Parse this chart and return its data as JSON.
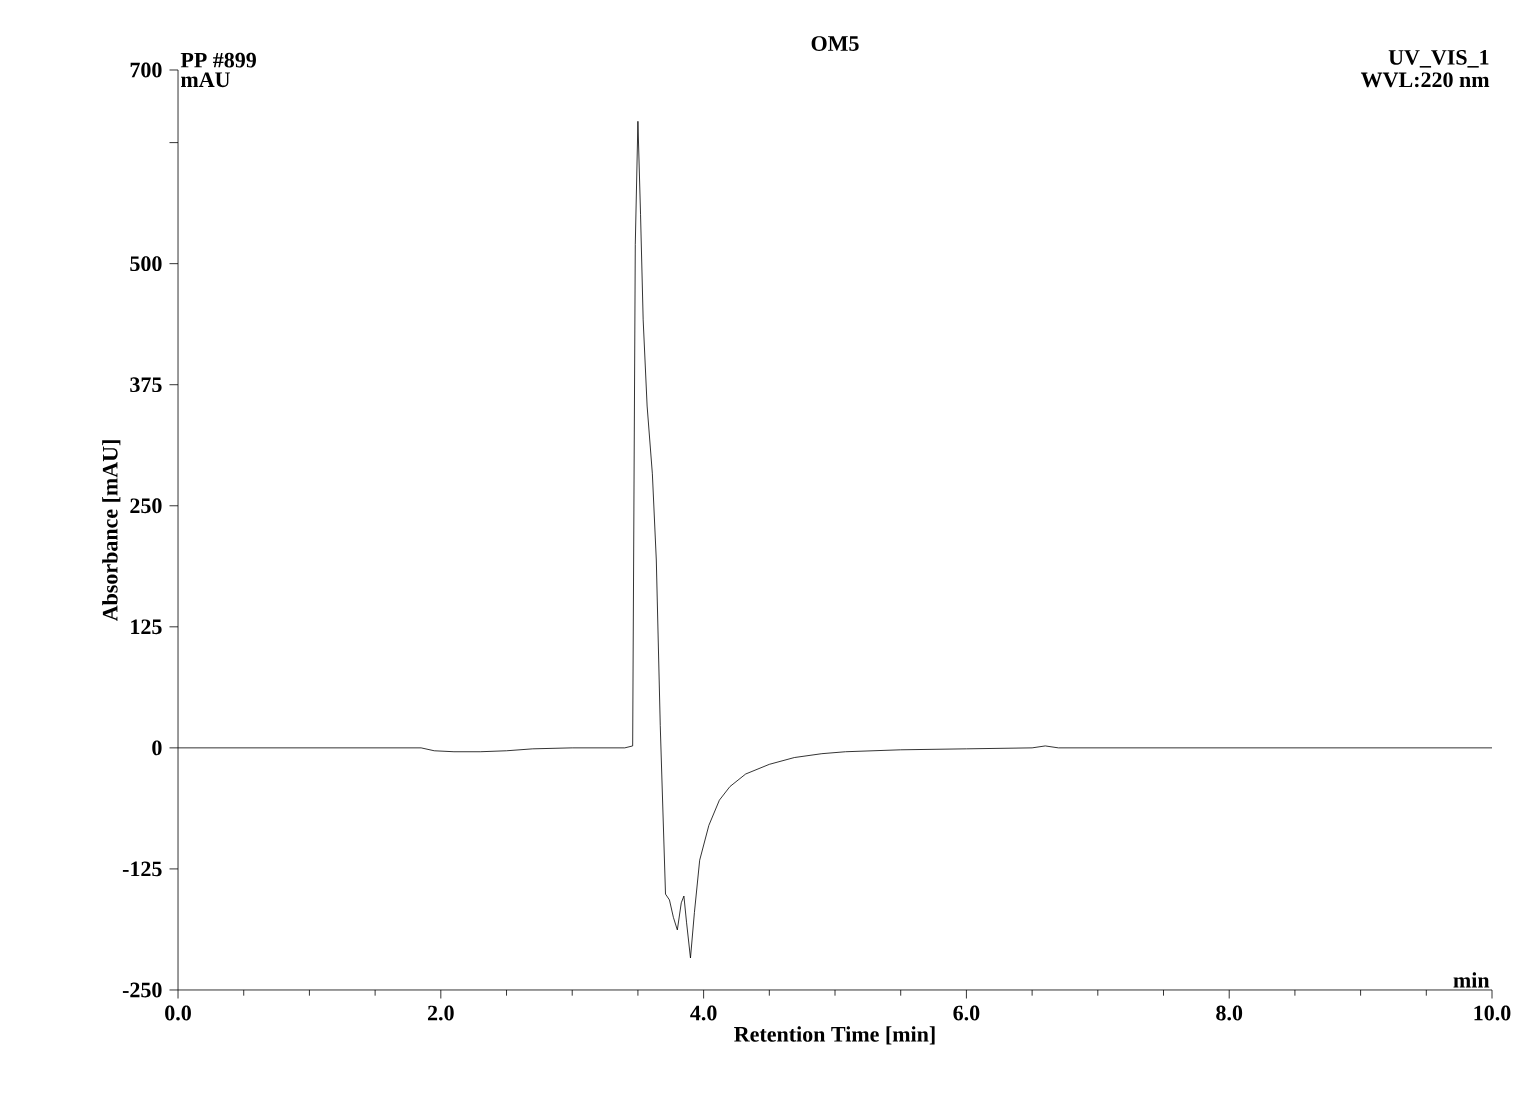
{
  "chart_data": {
    "type": "line",
    "title": "OM5",
    "xlabel": "Retention Time [min]",
    "ylabel": "Absorbance [mAU]",
    "annotations": [
      "PP #899",
      "UV_VIS_1",
      "mAU",
      "WVL:220 nm",
      "min"
    ],
    "x": [
      0.0,
      1.0,
      1.85,
      1.95,
      2.1,
      2.3,
      2.5,
      2.7,
      3.0,
      3.4,
      3.46,
      3.48,
      3.5,
      3.52,
      3.54,
      3.57,
      3.61,
      3.64,
      3.67,
      3.71,
      3.74,
      3.77,
      3.8,
      3.83,
      3.85,
      3.87,
      3.9,
      3.93,
      3.97,
      4.04,
      4.12,
      4.2,
      4.32,
      4.5,
      4.69,
      4.9,
      5.08,
      5.5,
      6.0,
      6.5,
      6.6,
      6.7,
      7.5,
      8.5,
      10.0
    ],
    "series": [
      {
        "color": "#000000",
        "values": [
          0,
          0,
          0,
          -3,
          -4,
          -4,
          -3,
          -1,
          0,
          0,
          2,
          520,
          647,
          551,
          442,
          353,
          283,
          194,
          23,
          -151,
          -157,
          -175,
          -188,
          -160,
          -153,
          -180,
          -217,
          -170,
          -116,
          -80,
          -54,
          -40,
          -27,
          -17,
          -10,
          -6,
          -4,
          -2,
          -1,
          0,
          2,
          0,
          0,
          0,
          0
        ]
      }
    ],
    "xlim": [
      0,
      10
    ],
    "ylim": [
      -250,
      700
    ],
    "xticks": [
      {
        "value": 0,
        "label": "0.0"
      },
      {
        "value": 2,
        "label": "2.0"
      },
      {
        "value": 4,
        "label": "4.0"
      },
      {
        "value": 6,
        "label": "6.0"
      },
      {
        "value": 8,
        "label": "8.0"
      },
      {
        "value": 10,
        "label": "10.0"
      }
    ],
    "yticks": [
      -250,
      -125,
      0,
      125,
      250,
      375,
      500,
      {
        "value": 625,
        "label": null
      },
      700
    ],
    "grid": false,
    "marker": "none",
    "line_style": "solid"
  }
}
